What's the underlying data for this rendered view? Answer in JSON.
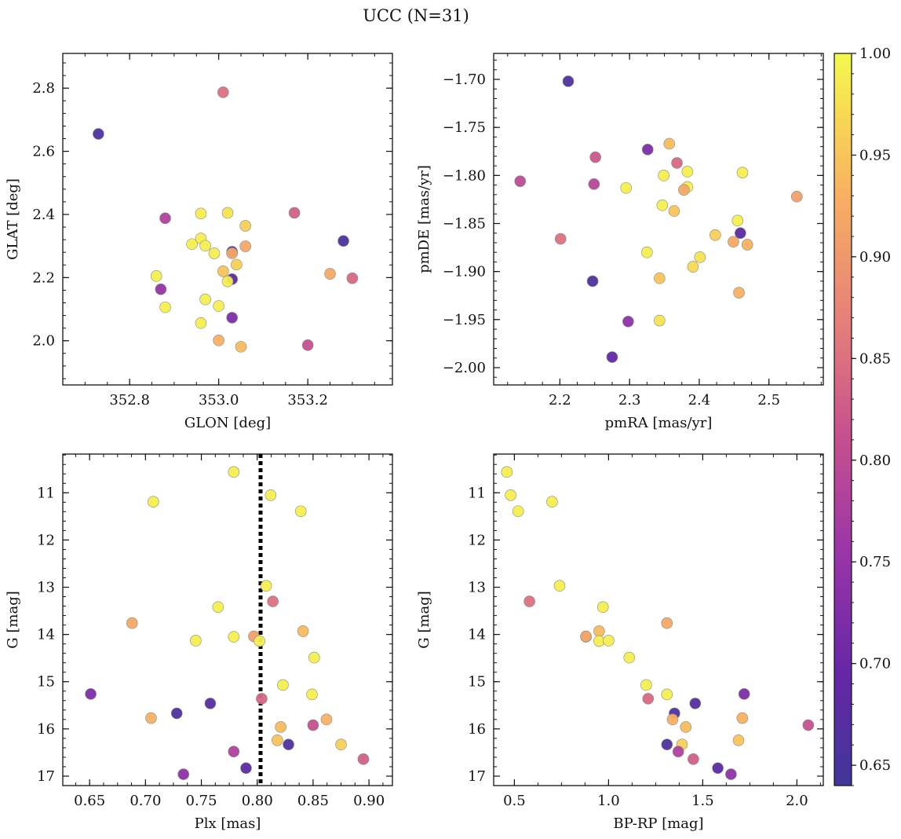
{
  "figure": {
    "title": "UCC (N=31)"
  },
  "colorbar": {
    "range": [
      0.64,
      1.0
    ],
    "ticks": [
      0.65,
      0.7,
      0.75,
      0.8,
      0.85,
      0.9,
      0.95,
      1.0
    ],
    "tick_labels": [
      "0.65",
      "0.70",
      "0.75",
      "0.80",
      "0.85",
      "0.90",
      "0.95",
      "1.00"
    ],
    "colormap": "plasma"
  },
  "chart_data": [
    {
      "id": "glon-glat",
      "type": "scatter",
      "xlabel": "GLON [deg]",
      "ylabel": "GLAT [deg]",
      "xlim": [
        352.65,
        353.39
      ],
      "ylim": [
        1.86,
        2.91
      ],
      "xticks": [
        352.8,
        353.0,
        353.2
      ],
      "xtick_labels": [
        "352.8",
        "353.0",
        "353.2"
      ],
      "yticks": [
        2.0,
        2.2,
        2.4,
        2.6,
        2.8
      ],
      "ytick_labels": [
        "2.0",
        "2.2",
        "2.4",
        "2.6",
        "2.8"
      ],
      "y_inverted": false,
      "points": [
        {
          "x": 352.73,
          "y": 2.655,
          "c": 0.66
        },
        {
          "x": 353.01,
          "y": 2.787,
          "c": 0.85
        },
        {
          "x": 352.88,
          "y": 2.388,
          "c": 0.78
        },
        {
          "x": 352.96,
          "y": 2.403,
          "c": 0.99
        },
        {
          "x": 353.02,
          "y": 2.405,
          "c": 0.98
        },
        {
          "x": 353.17,
          "y": 2.405,
          "c": 0.83
        },
        {
          "x": 353.06,
          "y": 2.364,
          "c": 0.96
        },
        {
          "x": 352.94,
          "y": 2.306,
          "c": 0.99
        },
        {
          "x": 352.96,
          "y": 2.324,
          "c": 0.99
        },
        {
          "x": 352.97,
          "y": 2.301,
          "c": 0.99
        },
        {
          "x": 352.99,
          "y": 2.277,
          "c": 0.99
        },
        {
          "x": 353.03,
          "y": 2.282,
          "c": 0.68
        },
        {
          "x": 353.03,
          "y": 2.277,
          "c": 0.92
        },
        {
          "x": 353.06,
          "y": 2.299,
          "c": 0.92
        },
        {
          "x": 353.28,
          "y": 2.316,
          "c": 0.66
        },
        {
          "x": 353.04,
          "y": 2.241,
          "c": 0.96
        },
        {
          "x": 353.01,
          "y": 2.22,
          "c": 0.95
        },
        {
          "x": 353.03,
          "y": 2.195,
          "c": 0.68
        },
        {
          "x": 353.02,
          "y": 2.188,
          "c": 0.99
        },
        {
          "x": 352.86,
          "y": 2.205,
          "c": 0.99
        },
        {
          "x": 353.25,
          "y": 2.212,
          "c": 0.92
        },
        {
          "x": 353.3,
          "y": 2.198,
          "c": 0.84
        },
        {
          "x": 352.87,
          "y": 2.163,
          "c": 0.75
        },
        {
          "x": 352.97,
          "y": 2.131,
          "c": 0.99
        },
        {
          "x": 352.88,
          "y": 2.106,
          "c": 0.99
        },
        {
          "x": 353.0,
          "y": 2.11,
          "c": 0.99
        },
        {
          "x": 353.03,
          "y": 2.073,
          "c": 0.72
        },
        {
          "x": 352.96,
          "y": 2.056,
          "c": 0.99
        },
        {
          "x": 353.0,
          "y": 2.001,
          "c": 0.93
        },
        {
          "x": 353.05,
          "y": 1.981,
          "c": 0.94
        },
        {
          "x": 353.2,
          "y": 1.986,
          "c": 0.81
        }
      ]
    },
    {
      "id": "pmra-pmde",
      "type": "scatter",
      "xlabel": "pmRA [mas/yr]",
      "ylabel": "pmDE [mas/yr]",
      "xlim": [
        2.105,
        2.578
      ],
      "ylim": [
        -2.018,
        -1.673
      ],
      "xticks": [
        2.2,
        2.3,
        2.4,
        2.5
      ],
      "xtick_labels": [
        "2.2",
        "2.3",
        "2.4",
        "2.5"
      ],
      "yticks": [
        -1.7,
        -1.75,
        -1.8,
        -1.85,
        -1.9,
        -1.95,
        -2.0
      ],
      "ytick_labels": [
        "−1.70",
        "−1.75",
        "−1.80",
        "−1.85",
        "−1.90",
        "−1.95",
        "−2.00"
      ],
      "y_inverted": false,
      "points": [
        {
          "x": 2.212,
          "y": -1.702,
          "c": 0.66
        },
        {
          "x": 2.357,
          "y": -1.767,
          "c": 0.94
        },
        {
          "x": 2.326,
          "y": -1.773,
          "c": 0.72
        },
        {
          "x": 2.251,
          "y": -1.781,
          "c": 0.82
        },
        {
          "x": 2.368,
          "y": -1.787,
          "c": 0.84
        },
        {
          "x": 2.383,
          "y": -1.796,
          "c": 0.99
        },
        {
          "x": 2.462,
          "y": -1.797,
          "c": 0.99
        },
        {
          "x": 2.349,
          "y": -1.8,
          "c": 0.99
        },
        {
          "x": 2.143,
          "y": -1.806,
          "c": 0.8
        },
        {
          "x": 2.249,
          "y": -1.809,
          "c": 0.79
        },
        {
          "x": 2.383,
          "y": -1.812,
          "c": 0.99
        },
        {
          "x": 2.295,
          "y": -1.813,
          "c": 0.99
        },
        {
          "x": 2.378,
          "y": -1.815,
          "c": 0.92
        },
        {
          "x": 2.54,
          "y": -1.822,
          "c": 0.91
        },
        {
          "x": 2.347,
          "y": -1.831,
          "c": 0.99
        },
        {
          "x": 2.364,
          "y": -1.837,
          "c": 0.95
        },
        {
          "x": 2.455,
          "y": -1.847,
          "c": 0.99
        },
        {
          "x": 2.459,
          "y": -1.86,
          "c": 0.68
        },
        {
          "x": 2.423,
          "y": -1.862,
          "c": 0.96
        },
        {
          "x": 2.201,
          "y": -1.866,
          "c": 0.85
        },
        {
          "x": 2.449,
          "y": -1.869,
          "c": 0.92
        },
        {
          "x": 2.469,
          "y": -1.872,
          "c": 0.93
        },
        {
          "x": 2.325,
          "y": -1.88,
          "c": 0.99
        },
        {
          "x": 2.401,
          "y": -1.885,
          "c": 0.98
        },
        {
          "x": 2.391,
          "y": -1.895,
          "c": 0.97
        },
        {
          "x": 2.343,
          "y": -1.907,
          "c": 0.95
        },
        {
          "x": 2.247,
          "y": -1.91,
          "c": 0.66
        },
        {
          "x": 2.457,
          "y": -1.922,
          "c": 0.93
        },
        {
          "x": 2.343,
          "y": -1.951,
          "c": 0.98
        },
        {
          "x": 2.298,
          "y": -1.952,
          "c": 0.74
        },
        {
          "x": 2.275,
          "y": -1.989,
          "c": 0.69
        }
      ]
    },
    {
      "id": "plx-g",
      "type": "scatter",
      "xlabel": "Plx [mas]",
      "ylabel": "G [mag]",
      "xlim": [
        0.626,
        0.921
      ],
      "ylim": [
        10.18,
        17.2
      ],
      "xticks": [
        0.65,
        0.7,
        0.75,
        0.8,
        0.85,
        0.9
      ],
      "xtick_labels": [
        "0.65",
        "0.70",
        "0.75",
        "0.80",
        "0.85",
        "0.90"
      ],
      "yticks": [
        11,
        12,
        13,
        14,
        15,
        16,
        17
      ],
      "ytick_labels": [
        "11",
        "12",
        "13",
        "14",
        "15",
        "16",
        "17"
      ],
      "y_inverted": true,
      "vline": 0.803,
      "points": [
        {
          "x": 0.779,
          "y": 10.56,
          "c": 0.99
        },
        {
          "x": 0.812,
          "y": 11.05,
          "c": 0.99
        },
        {
          "x": 0.707,
          "y": 11.19,
          "c": 0.99
        },
        {
          "x": 0.839,
          "y": 11.39,
          "c": 0.99
        },
        {
          "x": 0.808,
          "y": 12.97,
          "c": 0.99
        },
        {
          "x": 0.814,
          "y": 13.3,
          "c": 0.85
        },
        {
          "x": 0.765,
          "y": 13.42,
          "c": 0.99
        },
        {
          "x": 0.688,
          "y": 13.76,
          "c": 0.92
        },
        {
          "x": 0.841,
          "y": 13.93,
          "c": 0.94
        },
        {
          "x": 0.779,
          "y": 14.05,
          "c": 0.99
        },
        {
          "x": 0.797,
          "y": 14.04,
          "c": 0.91
        },
        {
          "x": 0.802,
          "y": 14.14,
          "c": 0.99
        },
        {
          "x": 0.745,
          "y": 14.13,
          "c": 0.99
        },
        {
          "x": 0.851,
          "y": 14.49,
          "c": 0.99
        },
        {
          "x": 0.823,
          "y": 15.07,
          "c": 0.99
        },
        {
          "x": 0.651,
          "y": 15.26,
          "c": 0.72
        },
        {
          "x": 0.849,
          "y": 15.27,
          "c": 0.99
        },
        {
          "x": 0.804,
          "y": 15.36,
          "c": 0.84
        },
        {
          "x": 0.758,
          "y": 15.46,
          "c": 0.67
        },
        {
          "x": 0.728,
          "y": 15.67,
          "c": 0.66
        },
        {
          "x": 0.705,
          "y": 15.77,
          "c": 0.93
        },
        {
          "x": 0.862,
          "y": 15.8,
          "c": 0.93
        },
        {
          "x": 0.85,
          "y": 15.92,
          "c": 0.81
        },
        {
          "x": 0.821,
          "y": 15.96,
          "c": 0.94
        },
        {
          "x": 0.818,
          "y": 16.24,
          "c": 0.95
        },
        {
          "x": 0.828,
          "y": 16.33,
          "c": 0.66
        },
        {
          "x": 0.875,
          "y": 16.33,
          "c": 0.96
        },
        {
          "x": 0.779,
          "y": 16.48,
          "c": 0.78
        },
        {
          "x": 0.895,
          "y": 16.64,
          "c": 0.83
        },
        {
          "x": 0.79,
          "y": 16.83,
          "c": 0.68
        },
        {
          "x": 0.734,
          "y": 16.96,
          "c": 0.74
        }
      ]
    },
    {
      "id": "bprp-g",
      "type": "scatter",
      "xlabel": "BP-RP [mag]",
      "ylabel": "G [mag]",
      "xlim": [
        0.39,
        2.14
      ],
      "ylim": [
        10.18,
        17.2
      ],
      "xticks": [
        0.5,
        1.0,
        1.5,
        2.0
      ],
      "xtick_labels": [
        "0.5",
        "1.0",
        "1.5",
        "2.0"
      ],
      "yticks": [
        11,
        12,
        13,
        14,
        15,
        16,
        17
      ],
      "ytick_labels": [
        "11",
        "12",
        "13",
        "14",
        "15",
        "16",
        "17"
      ],
      "y_inverted": true,
      "points": [
        {
          "x": 0.46,
          "y": 10.56,
          "c": 0.99
        },
        {
          "x": 0.48,
          "y": 11.05,
          "c": 0.99
        },
        {
          "x": 0.52,
          "y": 11.39,
          "c": 0.99
        },
        {
          "x": 0.7,
          "y": 11.19,
          "c": 0.99
        },
        {
          "x": 0.58,
          "y": 13.3,
          "c": 0.85
        },
        {
          "x": 0.74,
          "y": 12.97,
          "c": 0.99
        },
        {
          "x": 0.97,
          "y": 13.42,
          "c": 0.99
        },
        {
          "x": 0.88,
          "y": 14.05,
          "c": 0.99
        },
        {
          "x": 0.88,
          "y": 14.04,
          "c": 0.91
        },
        {
          "x": 0.95,
          "y": 13.93,
          "c": 0.94
        },
        {
          "x": 0.95,
          "y": 14.14,
          "c": 0.99
        },
        {
          "x": 1.0,
          "y": 14.13,
          "c": 0.99
        },
        {
          "x": 1.31,
          "y": 13.76,
          "c": 0.92
        },
        {
          "x": 1.11,
          "y": 14.49,
          "c": 0.99
        },
        {
          "x": 1.2,
          "y": 15.07,
          "c": 0.99
        },
        {
          "x": 1.31,
          "y": 15.27,
          "c": 0.99
        },
        {
          "x": 1.21,
          "y": 15.36,
          "c": 0.84
        },
        {
          "x": 1.46,
          "y": 15.46,
          "c": 0.67
        },
        {
          "x": 1.72,
          "y": 15.26,
          "c": 0.72
        },
        {
          "x": 1.35,
          "y": 15.67,
          "c": 0.66
        },
        {
          "x": 1.34,
          "y": 15.8,
          "c": 0.93
        },
        {
          "x": 1.71,
          "y": 15.77,
          "c": 0.93
        },
        {
          "x": 1.41,
          "y": 15.96,
          "c": 0.94
        },
        {
          "x": 2.06,
          "y": 15.92,
          "c": 0.81
        },
        {
          "x": 1.69,
          "y": 16.24,
          "c": 0.95
        },
        {
          "x": 1.31,
          "y": 16.33,
          "c": 0.66
        },
        {
          "x": 1.39,
          "y": 16.33,
          "c": 0.96
        },
        {
          "x": 1.37,
          "y": 16.48,
          "c": 0.78
        },
        {
          "x": 1.45,
          "y": 16.64,
          "c": 0.83
        },
        {
          "x": 1.58,
          "y": 16.83,
          "c": 0.68
        },
        {
          "x": 1.65,
          "y": 16.96,
          "c": 0.74
        }
      ]
    }
  ]
}
